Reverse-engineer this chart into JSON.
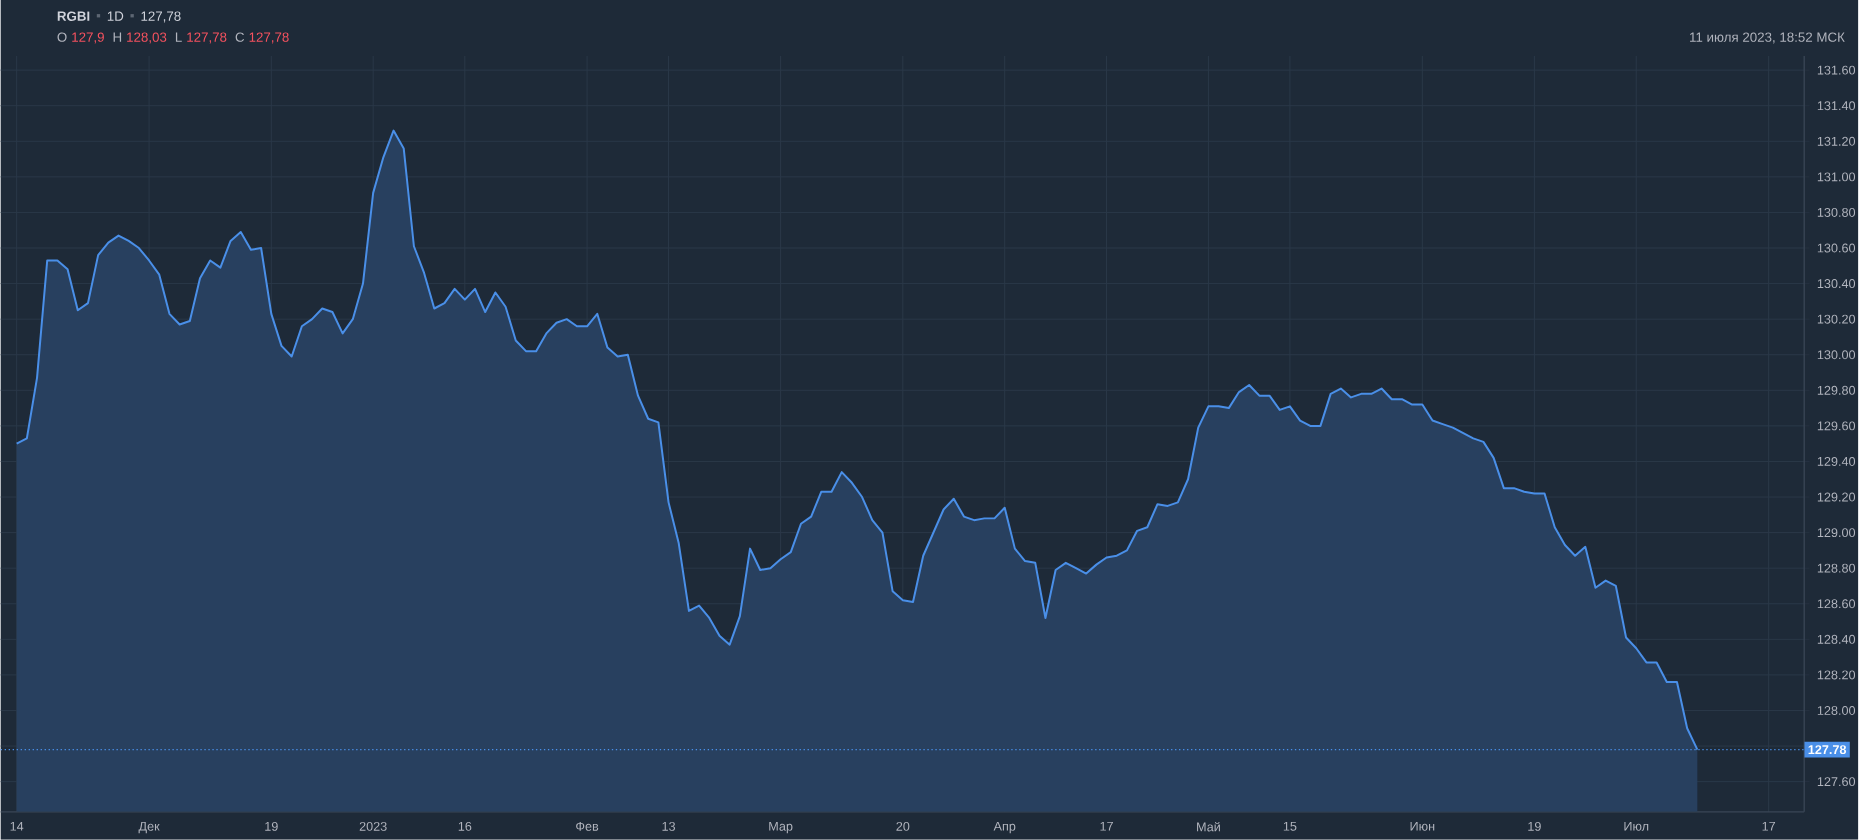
{
  "chart_data": {
    "type": "area",
    "title": "RGBI",
    "subtitle": "11 июля 2023, 18:52 МСК",
    "annotations": [
      "1D",
      "127,78",
      "O",
      "127,9",
      "H",
      "128,03",
      "L",
      "127,78",
      "C",
      "127,78"
    ],
    "categories": [
      "14",
      null,
      null,
      null,
      null,
      null,
      null,
      null,
      null,
      null,
      null,
      null,
      null,
      "Дек",
      null,
      null,
      null,
      null,
      null,
      null,
      null,
      null,
      null,
      null,
      null,
      "19",
      null,
      null,
      null,
      null,
      null,
      null,
      null,
      null,
      null,
      "2023",
      null,
      null,
      null,
      null,
      null,
      null,
      null,
      null,
      "16",
      null,
      null,
      null,
      null,
      null,
      null,
      null,
      null,
      null,
      null,
      null,
      "Фев",
      null,
      null,
      null,
      null,
      null,
      null,
      null,
      "13",
      null,
      null,
      null,
      null,
      null,
      null,
      null,
      null,
      null,
      null,
      "Мар",
      null,
      null,
      null,
      null,
      null,
      null,
      null,
      null,
      null,
      null,
      null,
      "20",
      null,
      null,
      null,
      null,
      null,
      null,
      null,
      null,
      null,
      "Апр",
      null,
      null,
      null,
      null,
      null,
      null,
      null,
      null,
      null,
      "17",
      null,
      null,
      null,
      null,
      null,
      null,
      null,
      null,
      null,
      "Май",
      null,
      null,
      null,
      null,
      null,
      null,
      null,
      "15",
      null,
      null,
      null,
      null,
      null,
      null,
      null,
      null,
      null,
      null,
      null,
      null,
      "Июн",
      null,
      null,
      null,
      null,
      null,
      null,
      null,
      null,
      null,
      null,
      "19",
      null,
      null,
      null,
      null,
      null,
      null,
      null,
      null,
      null,
      "Июл",
      null,
      null,
      null,
      null,
      null,
      null,
      null,
      null,
      null,
      null,
      null,
      null,
      "17"
    ],
    "values": [
      129.5,
      129.53,
      129.87,
      130.53,
      130.53,
      130.48,
      130.25,
      130.29,
      130.56,
      130.63,
      130.67,
      130.64,
      130.6,
      130.53,
      130.45,
      130.23,
      130.17,
      130.19,
      130.43,
      130.53,
      130.49,
      130.64,
      130.69,
      130.59,
      130.6,
      130.23,
      130.05,
      129.99,
      130.16,
      130.2,
      130.26,
      130.24,
      130.12,
      130.2,
      130.4,
      130.91,
      131.11,
      131.26,
      131.16,
      130.61,
      130.46,
      130.26,
      130.29,
      130.37,
      130.31,
      130.37,
      130.24,
      130.35,
      130.27,
      130.08,
      130.02,
      130.02,
      130.12,
      130.18,
      130.2,
      130.16,
      130.16,
      130.23,
      130.04,
      129.99,
      130.0,
      129.77,
      129.64,
      129.62,
      129.17,
      128.94,
      128.56,
      128.59,
      128.52,
      128.42,
      128.37,
      128.53,
      128.91,
      128.79,
      128.8,
      128.85,
      128.89,
      129.05,
      129.09,
      129.23,
      129.23,
      129.34,
      129.28,
      129.2,
      129.07,
      129.0,
      128.67,
      128.62,
      128.61,
      128.87,
      129.0,
      129.13,
      129.19,
      129.09,
      129.07,
      129.08,
      129.08,
      129.14,
      128.91,
      128.84,
      128.83,
      128.52,
      128.79,
      128.83,
      128.8,
      128.77,
      128.82,
      128.86,
      128.87,
      128.9,
      129.01,
      129.03,
      129.16,
      129.15,
      129.17,
      129.3,
      129.59,
      129.71,
      129.71,
      129.7,
      129.79,
      129.83,
      129.77,
      129.77,
      129.69,
      129.71,
      129.63,
      129.6,
      129.6,
      129.78,
      129.81,
      129.76,
      129.78,
      129.78,
      129.81,
      129.75,
      129.75,
      129.72,
      129.72,
      129.63,
      129.61,
      129.59,
      129.56,
      129.53,
      129.51,
      129.42,
      129.25,
      129.25,
      129.23,
      129.22,
      129.22,
      129.03,
      128.93,
      128.87,
      128.92,
      128.69,
      128.73,
      128.7,
      128.41,
      128.35,
      128.27,
      128.27,
      128.16,
      128.16,
      127.9,
      127.78,
      null,
      null,
      null,
      null,
      null,
      null,
      null
    ],
    "color": "#4a8fe8",
    "ylim": [
      127.43,
      131.68
    ],
    "yticks": [
      {
        "value": 127.6,
        "label": "127.60"
      },
      {
        "value": 127.8,
        "label": null
      },
      {
        "value": 128.0,
        "label": "128.00"
      },
      {
        "value": 128.2,
        "label": "128.20"
      },
      {
        "value": 128.4,
        "label": "128.40"
      },
      {
        "value": 128.6,
        "label": "128.60"
      },
      {
        "value": 128.8,
        "label": "128.80"
      },
      {
        "value": 129.0,
        "label": "129.00"
      },
      {
        "value": 129.2,
        "label": "129.20"
      },
      {
        "value": 129.4,
        "label": "129.40"
      },
      {
        "value": 129.6,
        "label": "129.60"
      },
      {
        "value": 129.8,
        "label": "129.80"
      },
      {
        "value": 130.0,
        "label": "130.00"
      },
      {
        "value": 130.2,
        "label": "130.20"
      },
      {
        "value": 130.4,
        "label": "130.40"
      },
      {
        "value": 130.6,
        "label": "130.60"
      },
      {
        "value": 130.8,
        "label": "130.80"
      },
      {
        "value": 131.0,
        "label": "131.00"
      },
      {
        "value": 131.2,
        "label": "131.20"
      },
      {
        "value": 131.4,
        "label": "131.40"
      },
      {
        "value": 131.6,
        "label": "131.60"
      }
    ],
    "grid": true,
    "ref_lines": [
      {
        "axis": "y",
        "value": 127.78,
        "label": "127.78",
        "color": "#4a8fe8",
        "line_style": "dotted"
      }
    ]
  }
}
